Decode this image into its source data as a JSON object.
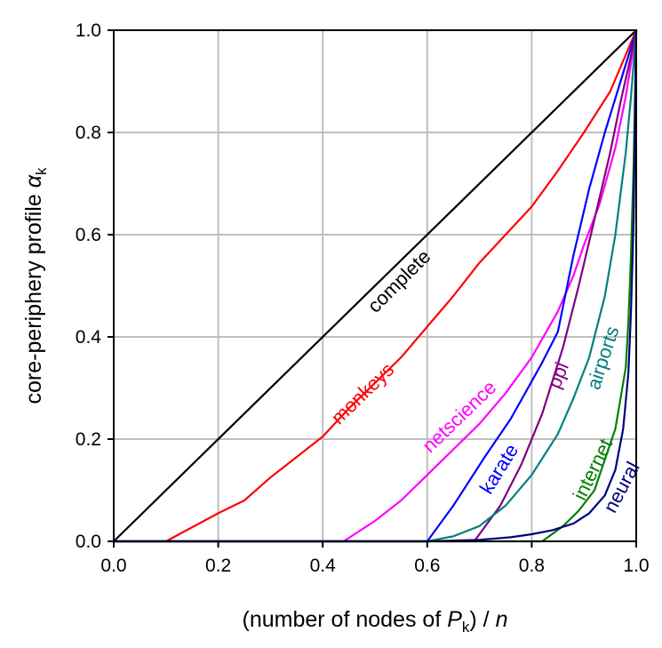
{
  "chart_data": {
    "type": "line",
    "xlabel_parts": {
      "pre": "(number of nodes of ",
      "var": "P",
      "sub": "k",
      "post": ") / ",
      "var2": "n"
    },
    "ylabel_parts": {
      "pre": "core-periphery profile ",
      "var": "α",
      "sub": "k"
    },
    "xlim": [
      0.0,
      1.0
    ],
    "ylim": [
      0.0,
      1.0
    ],
    "xticks": [
      "0.0",
      "0.2",
      "0.4",
      "0.6",
      "0.8",
      "1.0"
    ],
    "yticks": [
      "0.0",
      "0.2",
      "0.4",
      "0.6",
      "0.8",
      "1.0"
    ],
    "grid": true,
    "series": [
      {
        "name": "complete",
        "color": "#000000",
        "x": [
          0.0,
          1.0
        ],
        "y": [
          0.0,
          1.0
        ]
      },
      {
        "name": "monkeys",
        "color": "#ff0000",
        "x": [
          0.0,
          0.1,
          0.2,
          0.25,
          0.3,
          0.35,
          0.4,
          0.45,
          0.5,
          0.55,
          0.6,
          0.65,
          0.7,
          0.75,
          0.8,
          0.85,
          0.9,
          0.95,
          1.0
        ],
        "y": [
          0.0,
          0.0,
          0.055,
          0.08,
          0.125,
          0.165,
          0.205,
          0.26,
          0.31,
          0.36,
          0.42,
          0.48,
          0.545,
          0.6,
          0.655,
          0.725,
          0.8,
          0.88,
          1.0
        ]
      },
      {
        "name": "netscience",
        "color": "#ff00ff",
        "x": [
          0.0,
          0.44,
          0.5,
          0.55,
          0.6,
          0.65,
          0.7,
          0.75,
          0.8,
          0.85,
          0.88,
          0.9,
          0.93,
          0.96,
          0.98,
          1.0
        ],
        "y": [
          0.0,
          0.0,
          0.04,
          0.08,
          0.13,
          0.18,
          0.23,
          0.29,
          0.36,
          0.45,
          0.52,
          0.58,
          0.66,
          0.77,
          0.87,
          1.0
        ]
      },
      {
        "name": "karate",
        "color": "#0000ff",
        "x": [
          0.0,
          0.6,
          0.65,
          0.71,
          0.76,
          0.82,
          0.85,
          0.88,
          0.91,
          0.94,
          0.97,
          1.0
        ],
        "y": [
          0.0,
          0.0,
          0.07,
          0.165,
          0.24,
          0.35,
          0.41,
          0.56,
          0.69,
          0.8,
          0.9,
          1.0
        ]
      },
      {
        "name": "ppi",
        "color": "#800080",
        "x": [
          0.0,
          0.69,
          0.74,
          0.78,
          0.82,
          0.86,
          0.89,
          0.92,
          0.95,
          0.97,
          0.99,
          1.0
        ],
        "y": [
          0.0,
          0.0,
          0.07,
          0.15,
          0.25,
          0.38,
          0.5,
          0.63,
          0.76,
          0.86,
          0.95,
          1.0
        ]
      },
      {
        "name": "airports",
        "color": "#008080",
        "x": [
          0.0,
          0.6,
          0.65,
          0.7,
          0.75,
          0.8,
          0.85,
          0.88,
          0.91,
          0.94,
          0.96,
          0.98,
          0.99,
          1.0
        ],
        "y": [
          0.0,
          0.0,
          0.01,
          0.03,
          0.07,
          0.13,
          0.21,
          0.28,
          0.36,
          0.48,
          0.6,
          0.76,
          0.87,
          1.0
        ]
      },
      {
        "name": "internet",
        "color": "#008000",
        "x": [
          0.0,
          0.82,
          0.86,
          0.89,
          0.92,
          0.94,
          0.96,
          0.97,
          0.98,
          0.985,
          0.99,
          0.995,
          1.0
        ],
        "y": [
          0.0,
          0.0,
          0.03,
          0.06,
          0.1,
          0.16,
          0.22,
          0.28,
          0.34,
          0.43,
          0.56,
          0.74,
          1.0
        ]
      },
      {
        "name": "neural",
        "color": "#000080",
        "x": [
          0.0,
          0.6,
          0.7,
          0.76,
          0.8,
          0.84,
          0.88,
          0.91,
          0.94,
          0.96,
          0.975,
          0.985,
          0.99,
          0.995,
          1.0
        ],
        "y": [
          0.0,
          0.0,
          0.003,
          0.008,
          0.014,
          0.022,
          0.035,
          0.055,
          0.09,
          0.14,
          0.22,
          0.33,
          0.45,
          0.63,
          1.0
        ]
      }
    ],
    "series_labels": [
      {
        "name": "complete",
        "color": "#000000",
        "x": 0.555,
        "y": 0.5,
        "angle": -45.0
      },
      {
        "name": "monkeys",
        "color": "#ff0000",
        "x": 0.485,
        "y": 0.28,
        "angle": -44.0
      },
      {
        "name": "netscience",
        "color": "#ff00ff",
        "x": 0.67,
        "y": 0.235,
        "angle": -44.0
      },
      {
        "name": "karate",
        "color": "#0000ff",
        "x": 0.748,
        "y": 0.135,
        "angle": -58.0
      },
      {
        "name": "ppi",
        "color": "#800080",
        "x": 0.862,
        "y": 0.32,
        "angle": -68.0
      },
      {
        "name": "airports",
        "color": "#008080",
        "x": 0.948,
        "y": 0.355,
        "angle": -72.0
      },
      {
        "name": "internet",
        "color": "#008000",
        "x": 0.928,
        "y": 0.135,
        "angle": -64.0
      },
      {
        "name": "neural",
        "color": "#000080",
        "x": 0.983,
        "y": 0.1,
        "angle": -62.0
      }
    ]
  }
}
